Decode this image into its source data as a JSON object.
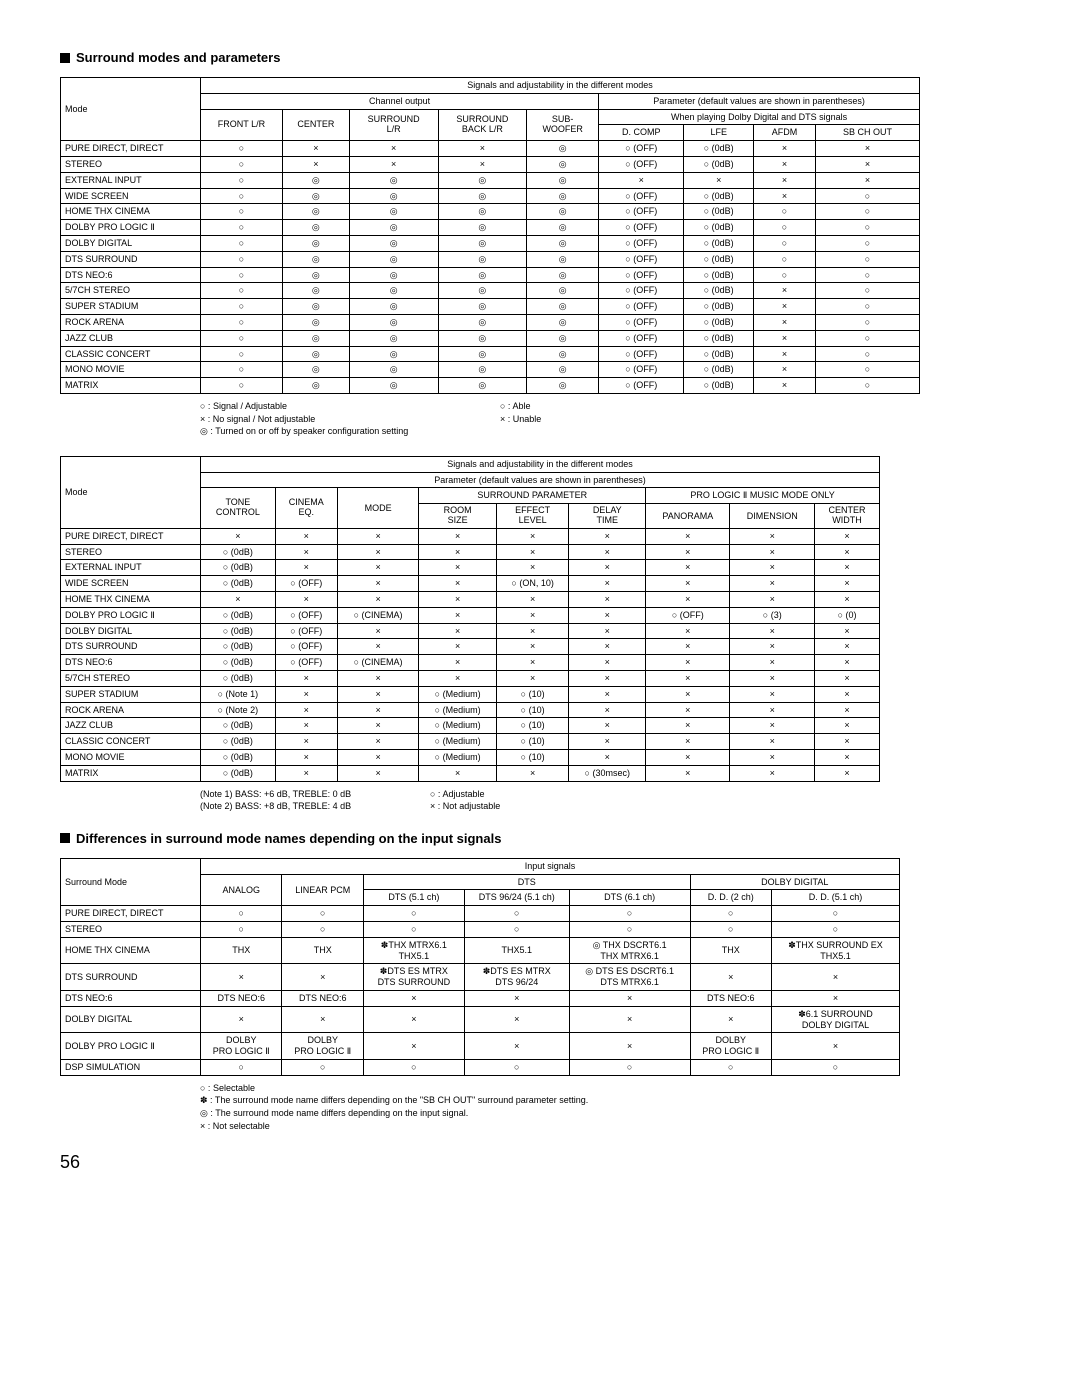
{
  "page_number": "56",
  "section1": {
    "title": "Surround modes and parameters",
    "top_header": "Signals and adjustability in the different modes",
    "channel_output": "Channel output",
    "param_default": "Parameter (default values are shown in parentheses)",
    "when_playing": "When playing Dolby Digital and DTS signals",
    "col_mode": "Mode",
    "cols": [
      "FRONT L/R",
      "CENTER",
      "SURROUND L/R",
      "SURROUND BACK L/R",
      "SUB-WOOFER",
      "D. COMP",
      "LFE",
      "AFDM",
      "SB CH OUT"
    ],
    "rows": [
      {
        "mode": "PURE DIRECT, DIRECT",
        "c": [
          "○",
          "×",
          "×",
          "×",
          "◎",
          "○ (OFF)",
          "○ (0dB)",
          "×",
          "×"
        ]
      },
      {
        "mode": "STEREO",
        "c": [
          "○",
          "×",
          "×",
          "×",
          "◎",
          "○ (OFF)",
          "○ (0dB)",
          "×",
          "×"
        ]
      },
      {
        "mode": "EXTERNAL INPUT",
        "c": [
          "○",
          "◎",
          "◎",
          "◎",
          "◎",
          "×",
          "×",
          "×",
          "×"
        ]
      },
      {
        "mode": "WIDE SCREEN",
        "c": [
          "○",
          "◎",
          "◎",
          "◎",
          "◎",
          "○ (OFF)",
          "○ (0dB)",
          "×",
          "○"
        ]
      },
      {
        "mode": "HOME THX CINEMA",
        "c": [
          "○",
          "◎",
          "◎",
          "◎",
          "◎",
          "○ (OFF)",
          "○ (0dB)",
          "○",
          "○"
        ]
      },
      {
        "mode": "DOLBY PRO LOGIC Ⅱ",
        "c": [
          "○",
          "◎",
          "◎",
          "◎",
          "◎",
          "○ (OFF)",
          "○ (0dB)",
          "○",
          "○"
        ]
      },
      {
        "mode": "DOLBY DIGITAL",
        "c": [
          "○",
          "◎",
          "◎",
          "◎",
          "◎",
          "○ (OFF)",
          "○ (0dB)",
          "○",
          "○"
        ]
      },
      {
        "mode": "DTS SURROUND",
        "c": [
          "○",
          "◎",
          "◎",
          "◎",
          "◎",
          "○ (OFF)",
          "○ (0dB)",
          "○",
          "○"
        ]
      },
      {
        "mode": "DTS NEO:6",
        "c": [
          "○",
          "◎",
          "◎",
          "◎",
          "◎",
          "○ (OFF)",
          "○ (0dB)",
          "○",
          "○"
        ]
      },
      {
        "mode": "5/7CH STEREO",
        "c": [
          "○",
          "◎",
          "◎",
          "◎",
          "◎",
          "○ (OFF)",
          "○ (0dB)",
          "×",
          "○"
        ]
      },
      {
        "mode": "SUPER STADIUM",
        "c": [
          "○",
          "◎",
          "◎",
          "◎",
          "◎",
          "○ (OFF)",
          "○ (0dB)",
          "×",
          "○"
        ]
      },
      {
        "mode": "ROCK ARENA",
        "c": [
          "○",
          "◎",
          "◎",
          "◎",
          "◎",
          "○ (OFF)",
          "○ (0dB)",
          "×",
          "○"
        ]
      },
      {
        "mode": "JAZZ CLUB",
        "c": [
          "○",
          "◎",
          "◎",
          "◎",
          "◎",
          "○ (OFF)",
          "○ (0dB)",
          "×",
          "○"
        ]
      },
      {
        "mode": "CLASSIC CONCERT",
        "c": [
          "○",
          "◎",
          "◎",
          "◎",
          "◎",
          "○ (OFF)",
          "○ (0dB)",
          "×",
          "○"
        ]
      },
      {
        "mode": "MONO MOVIE",
        "c": [
          "○",
          "◎",
          "◎",
          "◎",
          "◎",
          "○ (OFF)",
          "○ (0dB)",
          "×",
          "○"
        ]
      },
      {
        "mode": "MATRIX",
        "c": [
          "○",
          "◎",
          "◎",
          "◎",
          "◎",
          "○ (OFF)",
          "○ (0dB)",
          "×",
          "○"
        ]
      }
    ],
    "legend_left": [
      "○ :  Signal / Adjustable",
      "× :  No signal / Not adjustable",
      "◎ :  Turned on or off by speaker configuration setting"
    ],
    "legend_right": [
      "○ :  Able",
      "× :  Unable"
    ]
  },
  "section2": {
    "top_header": "Signals and adjustability in the different modes",
    "param_default": "Parameter (default values are shown in parentheses)",
    "surround_param": "SURROUND PARAMETER",
    "prologic_only": "PRO LOGIC Ⅱ MUSIC MODE ONLY",
    "col_mode": "Mode",
    "cols": [
      "TONE CONTROL",
      "CINEMA EQ.",
      "MODE",
      "ROOM SIZE",
      "EFFECT LEVEL",
      "DELAY TIME",
      "PANORAMA",
      "DIMENSION",
      "CENTER WIDTH"
    ],
    "rows": [
      {
        "mode": "PURE DIRECT, DIRECT",
        "c": [
          "×",
          "×",
          "×",
          "×",
          "×",
          "×",
          "×",
          "×",
          "×"
        ]
      },
      {
        "mode": "STEREO",
        "c": [
          "○ (0dB)",
          "×",
          "×",
          "×",
          "×",
          "×",
          "×",
          "×",
          "×"
        ]
      },
      {
        "mode": "EXTERNAL INPUT",
        "c": [
          "○ (0dB)",
          "×",
          "×",
          "×",
          "×",
          "×",
          "×",
          "×",
          "×"
        ]
      },
      {
        "mode": "WIDE SCREEN",
        "c": [
          "○ (0dB)",
          "○ (OFF)",
          "×",
          "×",
          "○ (ON, 10)",
          "×",
          "×",
          "×",
          "×"
        ]
      },
      {
        "mode": "HOME THX CINEMA",
        "c": [
          "×",
          "×",
          "×",
          "×",
          "×",
          "×",
          "×",
          "×",
          "×"
        ]
      },
      {
        "mode": "DOLBY PRO LOGIC Ⅱ",
        "c": [
          "○ (0dB)",
          "○ (OFF)",
          "○ (CINEMA)",
          "×",
          "×",
          "×",
          "○ (OFF)",
          "○ (3)",
          "○ (0)"
        ]
      },
      {
        "mode": "DOLBY DIGITAL",
        "c": [
          "○ (0dB)",
          "○ (OFF)",
          "×",
          "×",
          "×",
          "×",
          "×",
          "×",
          "×"
        ]
      },
      {
        "mode": "DTS SURROUND",
        "c": [
          "○ (0dB)",
          "○ (OFF)",
          "×",
          "×",
          "×",
          "×",
          "×",
          "×",
          "×"
        ]
      },
      {
        "mode": "DTS NEO:6",
        "c": [
          "○ (0dB)",
          "○ (OFF)",
          "○ (CINEMA)",
          "×",
          "×",
          "×",
          "×",
          "×",
          "×"
        ]
      },
      {
        "mode": "5/7CH STEREO",
        "c": [
          "○ (0dB)",
          "×",
          "×",
          "×",
          "×",
          "×",
          "×",
          "×",
          "×"
        ]
      },
      {
        "mode": "SUPER STADIUM",
        "c": [
          "○ (Note 1)",
          "×",
          "×",
          "○ (Medium)",
          "○ (10)",
          "×",
          "×",
          "×",
          "×"
        ]
      },
      {
        "mode": "ROCK ARENA",
        "c": [
          "○ (Note 2)",
          "×",
          "×",
          "○ (Medium)",
          "○ (10)",
          "×",
          "×",
          "×",
          "×"
        ]
      },
      {
        "mode": "JAZZ CLUB",
        "c": [
          "○ (0dB)",
          "×",
          "×",
          "○ (Medium)",
          "○ (10)",
          "×",
          "×",
          "×",
          "×"
        ]
      },
      {
        "mode": "CLASSIC CONCERT",
        "c": [
          "○ (0dB)",
          "×",
          "×",
          "○ (Medium)",
          "○ (10)",
          "×",
          "×",
          "×",
          "×"
        ]
      },
      {
        "mode": "MONO MOVIE",
        "c": [
          "○ (0dB)",
          "×",
          "×",
          "○ (Medium)",
          "○ (10)",
          "×",
          "×",
          "×",
          "×"
        ]
      },
      {
        "mode": "MATRIX",
        "c": [
          "○ (0dB)",
          "×",
          "×",
          "×",
          "×",
          "○ (30msec)",
          "×",
          "×",
          "×"
        ]
      }
    ],
    "legend_left": [
      "(Note 1) BASS: +6 dB, TREBLE: 0 dB",
      "(Note 2) BASS: +8 dB, TREBLE: 4 dB"
    ],
    "legend_right": [
      "○ :  Adjustable",
      "× :  Not adjustable"
    ]
  },
  "section3": {
    "title": "Differences in surround mode names depending on the input signals",
    "input_signals": "Input signals",
    "col_mode": "Surround Mode",
    "dts": "DTS",
    "dolby_digital": "DOLBY DIGITAL",
    "cols": [
      "ANALOG",
      "LINEAR PCM",
      "DTS (5.1 ch)",
      "DTS 96/24 (5.1 ch)",
      "DTS (6.1 ch)",
      "D. D. (2 ch)",
      "D. D. (5.1 ch)"
    ],
    "rows": [
      {
        "mode": "PURE DIRECT, DIRECT",
        "c": [
          "○",
          "○",
          "○",
          "○",
          "○",
          "○",
          "○"
        ]
      },
      {
        "mode": "STEREO",
        "c": [
          "○",
          "○",
          "○",
          "○",
          "○",
          "○",
          "○"
        ]
      },
      {
        "mode": "HOME THX CINEMA",
        "c": [
          "THX",
          "THX",
          "✽THX MTRX6.1\nTHX5.1",
          "THX5.1",
          "◎ THX DSCRT6.1\nTHX MTRX6.1",
          "THX",
          "✽THX SURROUND EX\nTHX5.1"
        ]
      },
      {
        "mode": "DTS SURROUND",
        "c": [
          "×",
          "×",
          "✽DTS ES MTRX\nDTS SURROUND",
          "✽DTS ES MTRX\nDTS 96/24",
          "◎ DTS ES DSCRT6.1\nDTS MTRX6.1",
          "×",
          "×"
        ]
      },
      {
        "mode": "DTS NEO:6",
        "c": [
          "DTS NEO:6",
          "DTS NEO:6",
          "×",
          "×",
          "×",
          "DTS NEO:6",
          "×"
        ]
      },
      {
        "mode": "DOLBY DIGITAL",
        "c": [
          "×",
          "×",
          "×",
          "×",
          "×",
          "×",
          "✽6.1 SURROUND\nDOLBY DIGITAL"
        ]
      },
      {
        "mode": "DOLBY PRO LOGIC Ⅱ",
        "c": [
          "DOLBY\nPRO LOGIC Ⅱ",
          "DOLBY\nPRO LOGIC Ⅱ",
          "×",
          "×",
          "×",
          "DOLBY\nPRO LOGIC Ⅱ",
          "×"
        ]
      },
      {
        "mode": "DSP SIMULATION",
        "c": [
          "○",
          "○",
          "○",
          "○",
          "○",
          "○",
          "○"
        ]
      }
    ],
    "legend": [
      "○ :  Selectable",
      "✽ :  The surround mode name differs depending on the \"SB CH OUT\" surround parameter setting.",
      "◎ :  The surround mode name differs depending on the input signal.",
      "× :  Not selectable"
    ]
  }
}
